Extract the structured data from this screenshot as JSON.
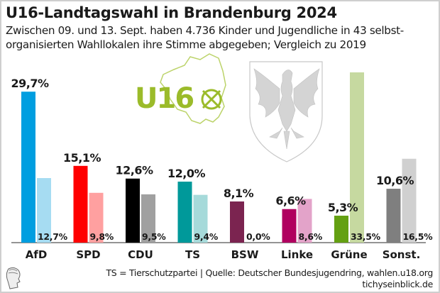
{
  "header": {
    "title": "U16-Landtagswahl in Brandenburg 2024",
    "subtitle": "Zwischen 09. und 13. Sept. haben 4.736 Kinder und Jugendliche in 43 selbst-organisierten Wahllokalen ihre Stimme abgegeben; Vergleich zu 2019"
  },
  "logo": {
    "text": "U16",
    "icon": "ballot-cross-icon",
    "color": "#9bbb2a"
  },
  "crest": {
    "icon": "brandenburg-eagle-crest-icon"
  },
  "footer": {
    "note": "TS = Tierschutzpartei  | Quelle: Deutscher Bundesjugendring, wahlen.u18.org",
    "site": "tichyseinblick.de",
    "logo_icon": "tichy-head-icon"
  },
  "chart_data": {
    "type": "bar",
    "title": "U16-Landtagswahl in Brandenburg 2024",
    "xlabel": "",
    "ylabel": "",
    "ylim": [
      0,
      33.5
    ],
    "grid": false,
    "legend": "none",
    "categories": [
      "AfD",
      "SPD",
      "CDU",
      "TS",
      "BSW",
      "Linke",
      "Grüne",
      "Sonst."
    ],
    "series": [
      {
        "name": "2024",
        "values": [
          29.7,
          15.1,
          12.6,
          12.0,
          8.1,
          6.6,
          5.3,
          10.6
        ],
        "labels": [
          "29,7%",
          "15,1%",
          "12,6%",
          "12,0%",
          "8,1%",
          "6,6%",
          "5,3%",
          "10,6%"
        ],
        "colors": [
          "#009ee0",
          "#ff0000",
          "#000000",
          "#00999a",
          "#7b2450",
          "#b0005f",
          "#64a012",
          "#7f7f7f"
        ]
      },
      {
        "name": "2019",
        "values": [
          12.7,
          9.8,
          9.5,
          9.4,
          0.0,
          8.6,
          33.5,
          16.5
        ],
        "labels": [
          "12,7%",
          "9,8%",
          "9,5%",
          "9,4%",
          "0,0%",
          "8,6%",
          "33,5%",
          "16,5%"
        ],
        "colors": [
          "#a6dcf2",
          "#ffa0a0",
          "#a0a0a0",
          "#a6dada",
          "#c9a8b8",
          "#e3a3c9",
          "#c6d9a0",
          "#d0d0d0"
        ]
      }
    ]
  }
}
